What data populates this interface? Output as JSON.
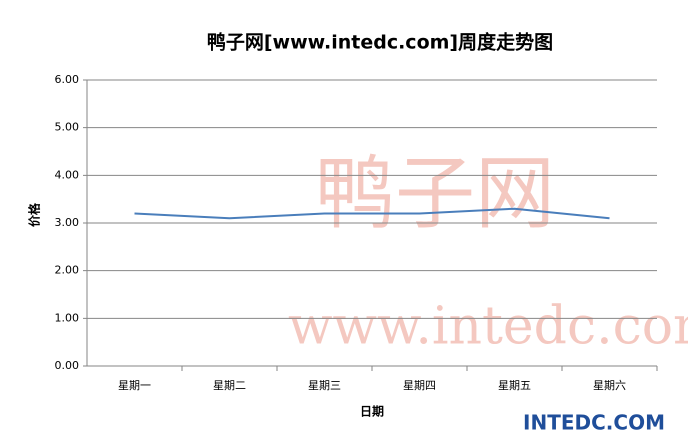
{
  "chart_data": {
    "type": "line",
    "title": "鸭子网[www.intedc.com]周度走势图",
    "x_label": "日期",
    "y_label": "价格",
    "categories": [
      "星期一",
      "星期二",
      "星期三",
      "星期四",
      "星期五",
      "星期六"
    ],
    "series": [
      {
        "name": "价格",
        "color": "#4a7ebb",
        "values": [
          3.2,
          3.1,
          3.2,
          3.2,
          3.3,
          3.1
        ]
      }
    ],
    "ylim": [
      0,
      6
    ],
    "yticks": [
      {
        "value": 0,
        "label": "0.00"
      },
      {
        "value": 1,
        "label": "1.00"
      },
      {
        "value": 2,
        "label": "2.00"
      },
      {
        "value": 3,
        "label": "3.00"
      },
      {
        "value": 4,
        "label": "4.00"
      },
      {
        "value": 5,
        "label": "5.00"
      },
      {
        "value": 6,
        "label": "6.00"
      }
    ],
    "grid": true,
    "watermark": [
      "鸭子网",
      "www.intedc.com"
    ],
    "logo": "INTEDC.COM"
  }
}
